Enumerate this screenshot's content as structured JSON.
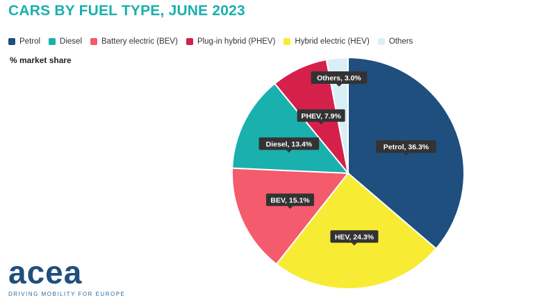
{
  "title": "CARS BY FUEL TYPE, JUNE 2023",
  "subtitle": "% market share",
  "legend": [
    {
      "label": "Petrol",
      "color": "#1e4f7e"
    },
    {
      "label": "Diesel",
      "color": "#1ab0ae"
    },
    {
      "label": "Battery electric (BEV)",
      "color": "#f45b6c"
    },
    {
      "label": "Plug-in hybrid (PHEV)",
      "color": "#d6204c"
    },
    {
      "label": "Hybrid electric (HEV)",
      "color": "#f7ec33"
    },
    {
      "label": "Others",
      "color": "#d9eff7"
    }
  ],
  "chart_data": {
    "type": "pie",
    "title": "CARS BY FUEL TYPE, JUNE 2023",
    "subtitle": "% market share",
    "legend_position": "top",
    "slices": [
      {
        "name": "Petrol",
        "value": 36.3,
        "label": "Petrol, 36.3%",
        "color": "#1e4f7e"
      },
      {
        "name": "HEV",
        "value": 24.3,
        "label": "HEV, 24.3%",
        "color": "#f7ec33"
      },
      {
        "name": "BEV",
        "value": 15.1,
        "label": "BEV, 15.1%",
        "color": "#f45b6c"
      },
      {
        "name": "Diesel",
        "value": 13.4,
        "label": "Diesel, 13.4%",
        "color": "#1ab0ae"
      },
      {
        "name": "PHEV",
        "value": 7.9,
        "label": "PHEV, 7.9%",
        "color": "#d6204c"
      },
      {
        "name": "Others",
        "value": 3.0,
        "label": "Others, 3.0%",
        "color": "#d9eff7"
      }
    ]
  },
  "logo": {
    "text": "acea",
    "tagline": "DRIVING MOBILITY FOR EUROPE"
  }
}
